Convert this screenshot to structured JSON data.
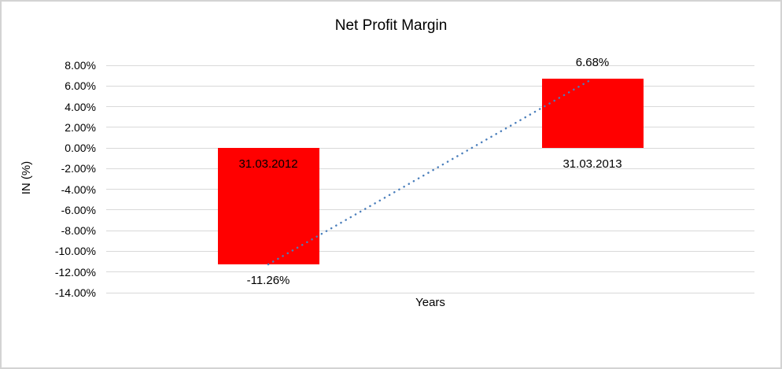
{
  "chart_data": {
    "type": "bar",
    "title": "Net Profit Margin",
    "xlabel": "Years",
    "ylabel": "IN (%)",
    "categories": [
      "31.03.2012",
      "31.03.2013"
    ],
    "series": [
      {
        "name": "Net Profit Margin",
        "values": [
          -11.26,
          6.68
        ]
      }
    ],
    "value_labels": [
      "-11.26%",
      "6.68%"
    ],
    "ylim": [
      -14,
      8
    ],
    "yticks": [
      {
        "label": "8.00%",
        "value": 8
      },
      {
        "label": "6.00%",
        "value": 6
      },
      {
        "label": "4.00%",
        "value": 4
      },
      {
        "label": "2.00%",
        "value": 2
      },
      {
        "label": "0.00%",
        "value": 0
      },
      {
        "label": "-2.00%",
        "value": -2
      },
      {
        "label": "-4.00%",
        "value": -4
      },
      {
        "label": "-6.00%",
        "value": -6
      },
      {
        "label": "-8.00%",
        "value": -8
      },
      {
        "label": "-10.00%",
        "value": -10
      },
      {
        "label": "-12.00%",
        "value": -12
      },
      {
        "label": "-14.00%",
        "value": -14
      }
    ],
    "grid": true,
    "legend": "none",
    "trendline": {
      "type": "linear",
      "style": "dotted"
    },
    "colors": {
      "bar": "#ff0000",
      "trendline": "#4a7ebb",
      "gridline": "#d9d9d9",
      "text": "#000000",
      "frame_border": "#d3d3d3"
    }
  }
}
